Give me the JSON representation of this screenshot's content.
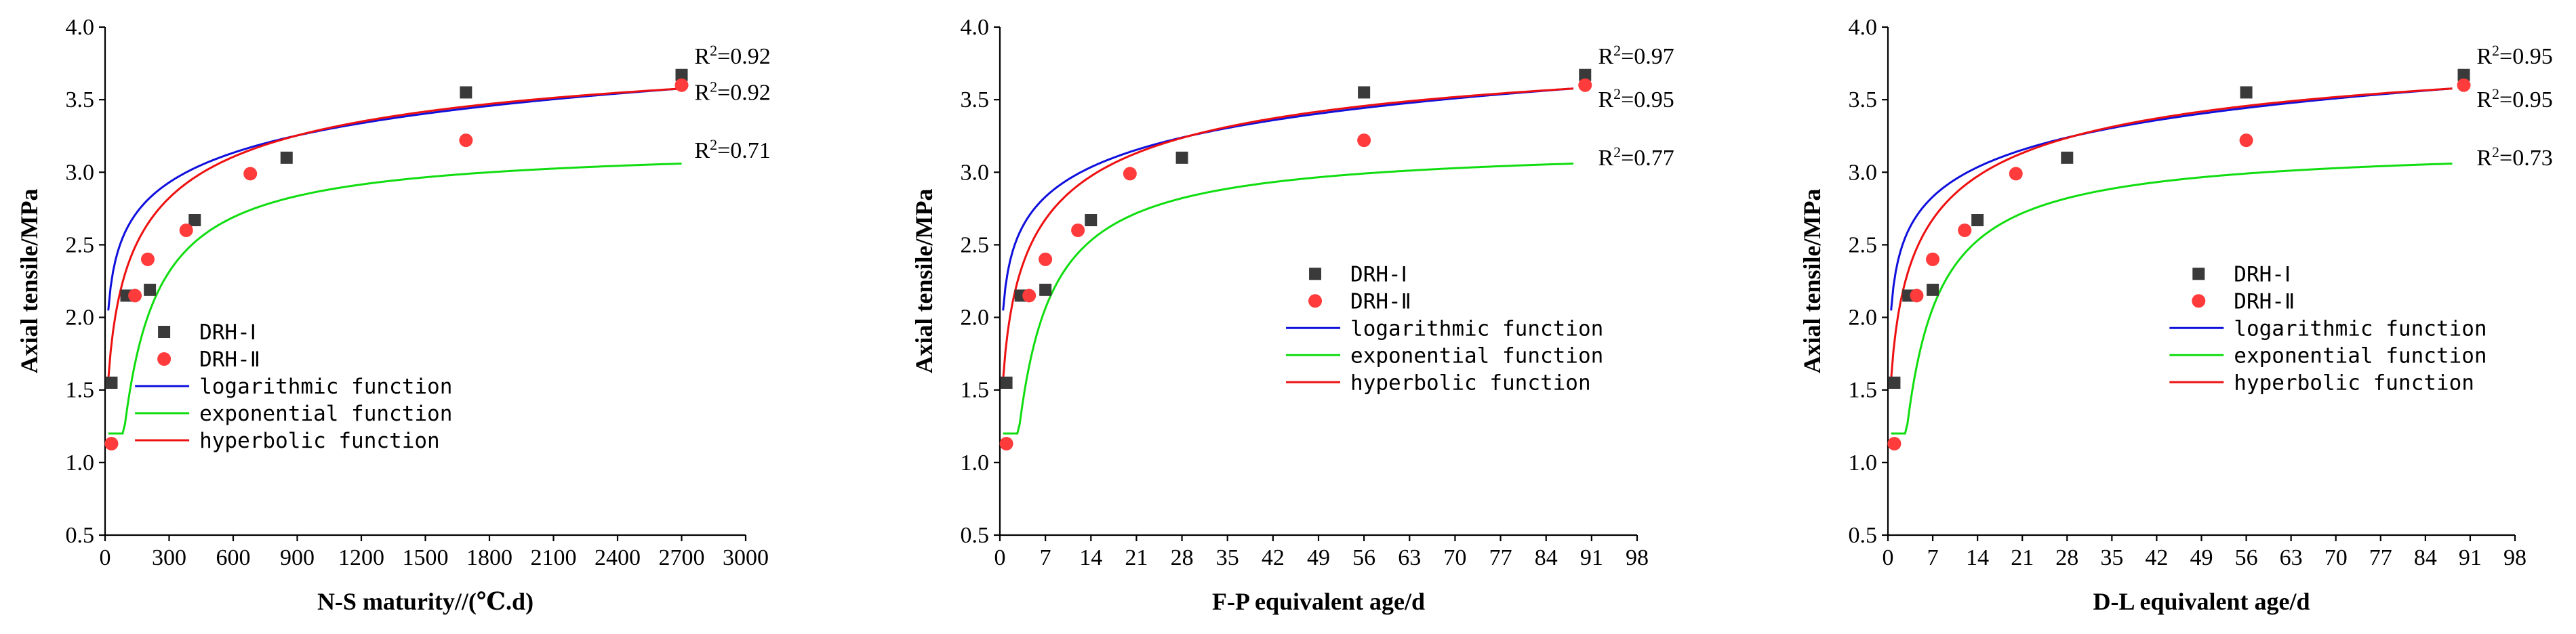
{
  "colors": {
    "DRH-I": "#3a3a3a",
    "DRH-II": "#ff3b3b",
    "logarithmic": "#1010dd",
    "exponential": "#10dd10",
    "hyperbolic": "#ee1010"
  },
  "chart_data": [
    {
      "type": "scatter",
      "xlabel": "N-S maturity//(℃.d)",
      "ylabel": "Axial tensile/MPa",
      "xlim": [
        0,
        3000
      ],
      "ylim": [
        0.5,
        4.0
      ],
      "xticks": [
        0,
        300,
        600,
        900,
        1200,
        1500,
        1800,
        2100,
        2400,
        2700,
        3000
      ],
      "yticks": [
        "0.5",
        "1.0",
        "1.5",
        "2.0",
        "2.5",
        "3.0",
        "3.5",
        "4.0"
      ],
      "series": [
        {
          "name": "DRH-Ⅰ",
          "marker": "square",
          "x": [
            30,
            100,
            210,
            420,
            850,
            1690,
            2700
          ],
          "y": [
            1.55,
            2.15,
            2.19,
            2.67,
            3.1,
            3.55,
            3.67
          ]
        },
        {
          "name": "DRH-Ⅱ",
          "marker": "circle",
          "x": [
            30,
            140,
            200,
            380,
            680,
            1690,
            2700
          ],
          "y": [
            1.13,
            2.15,
            2.4,
            2.6,
            2.99,
            3.22,
            3.6
          ]
        }
      ],
      "fits": [
        {
          "name": "logarithmic function",
          "kind": "log",
          "a": 1.2,
          "b": 0.31,
          "r2": "0.92"
        },
        {
          "name": "exponential function",
          "kind": "exp",
          "a": 3.2,
          "c": 1.38,
          "r2": "0.71"
        },
        {
          "name": "hyperbolic function",
          "kind": "hyp",
          "a": 4.1,
          "b": 3.3,
          "c": 130,
          "r2": "0.92"
        }
      ],
      "r2_labels": [
        {
          "text": "R²=0.92",
          "x": 2760,
          "y": 3.8
        },
        {
          "text": "R²=0.92",
          "x": 2760,
          "y": 3.55
        },
        {
          "text": "R²=0.71",
          "x": 2760,
          "y": 3.15
        }
      ],
      "legend": {
        "position": "center-left",
        "x": 140,
        "y": 1.9
      }
    },
    {
      "type": "scatter",
      "xlabel": "F-P equivalent age/d",
      "ylabel": "Axial tensile/MPa",
      "xlim": [
        0,
        98
      ],
      "ylim": [
        0.5,
        4.0
      ],
      "xticks": [
        0,
        7,
        14,
        21,
        28,
        35,
        42,
        49,
        56,
        63,
        70,
        77,
        84,
        91,
        98
      ],
      "yticks": [
        "0.5",
        "1.0",
        "1.5",
        "2.0",
        "2.5",
        "3.0",
        "3.5",
        "4.0"
      ],
      "series": [
        {
          "name": "DRH-Ⅰ",
          "marker": "square",
          "x": [
            1,
            3.2,
            7,
            14,
            28,
            56,
            90
          ],
          "y": [
            1.55,
            2.15,
            2.19,
            2.67,
            3.1,
            3.55,
            3.67
          ]
        },
        {
          "name": "DRH-Ⅱ",
          "marker": "circle",
          "x": [
            1,
            4.5,
            7,
            12,
            20,
            56,
            90
          ],
          "y": [
            1.13,
            2.15,
            2.4,
            2.6,
            2.99,
            3.22,
            3.6
          ]
        }
      ],
      "fits": [
        {
          "name": "logarithmic function",
          "kind": "log",
          "a": 1.2,
          "b": 0.31,
          "r2": "0.95"
        },
        {
          "name": "exponential function",
          "kind": "exp",
          "a": 3.2,
          "c": 1.38,
          "r2": "0.77"
        },
        {
          "name": "hyperbolic function",
          "kind": "hyp",
          "a": 4.1,
          "b": 3.3,
          "c": 130,
          "r2": "0.97"
        }
      ],
      "r2_labels": [
        {
          "text": "R²=0.97",
          "x": 92,
          "y": 3.8
        },
        {
          "text": "R²=0.95",
          "x": 92,
          "y": 3.5
        },
        {
          "text": "R²=0.77",
          "x": 92,
          "y": 3.1
        }
      ],
      "legend": {
        "position": "center",
        "x": 44,
        "y": 2.3
      }
    },
    {
      "type": "scatter",
      "xlabel": "D-L equivalent age/d",
      "ylabel": "Axial tensile/MPa",
      "xlim": [
        0,
        98
      ],
      "ylim": [
        0.5,
        4.0
      ],
      "xticks": [
        0,
        7,
        14,
        21,
        28,
        35,
        42,
        49,
        56,
        63,
        70,
        77,
        84,
        91,
        98
      ],
      "yticks": [
        "0.5",
        "1.0",
        "1.5",
        "2.0",
        "2.5",
        "3.0",
        "3.5",
        "4.0"
      ],
      "series": [
        {
          "name": "DRH-Ⅰ",
          "marker": "square",
          "x": [
            1,
            3.2,
            7,
            14,
            28,
            56,
            90
          ],
          "y": [
            1.55,
            2.15,
            2.19,
            2.67,
            3.1,
            3.55,
            3.67
          ]
        },
        {
          "name": "DRH-Ⅱ",
          "marker": "circle",
          "x": [
            1,
            4.5,
            7,
            12,
            20,
            56,
            90
          ],
          "y": [
            1.13,
            2.15,
            2.4,
            2.6,
            2.99,
            3.22,
            3.6
          ]
        }
      ],
      "fits": [
        {
          "name": "logarithmic function",
          "kind": "log",
          "a": 1.2,
          "b": 0.31,
          "r2": "0.95"
        },
        {
          "name": "exponential function",
          "kind": "exp",
          "a": 3.2,
          "c": 1.38,
          "r2": "0.73"
        },
        {
          "name": "hyperbolic function",
          "kind": "hyp",
          "a": 4.1,
          "b": 3.3,
          "c": 130,
          "r2": "0.95"
        }
      ],
      "r2_labels": [
        {
          "text": "R²=0.95",
          "x": 92,
          "y": 3.8
        },
        {
          "text": "R²=0.95",
          "x": 92,
          "y": 3.5
        },
        {
          "text": "R²=0.73",
          "x": 92,
          "y": 3.1
        }
      ],
      "legend": {
        "position": "center",
        "x": 44,
        "y": 2.3
      }
    }
  ]
}
